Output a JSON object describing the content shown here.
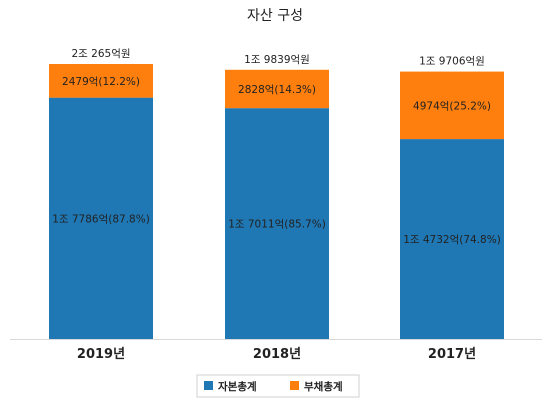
{
  "chart_data": {
    "type": "bar",
    "stacked": true,
    "title": "자산 구성",
    "categories": [
      "2019년",
      "2018년",
      "2017년"
    ],
    "totals": [
      20265,
      19839,
      19706
    ],
    "total_labels": [
      "2조 265억원",
      "1조 9839억원",
      "1조 9706억원"
    ],
    "series": [
      {
        "name": "자본총계",
        "color": "#1f77b4",
        "values": [
          17786,
          17011,
          14732
        ],
        "labels": [
          "1조 7786억(87.8%)",
          "1조 7011억(85.7%)",
          "1조 4732억(74.8%)"
        ]
      },
      {
        "name": "부채총계",
        "color": "#ff7f0e",
        "values": [
          2479,
          2828,
          4974
        ],
        "labels": [
          "2479억(12.2%)",
          "2828억(14.3%)",
          "4974억(25.2%)"
        ]
      }
    ],
    "ylim": [
      0,
      20265
    ],
    "grid": false,
    "legend": "bottom"
  }
}
